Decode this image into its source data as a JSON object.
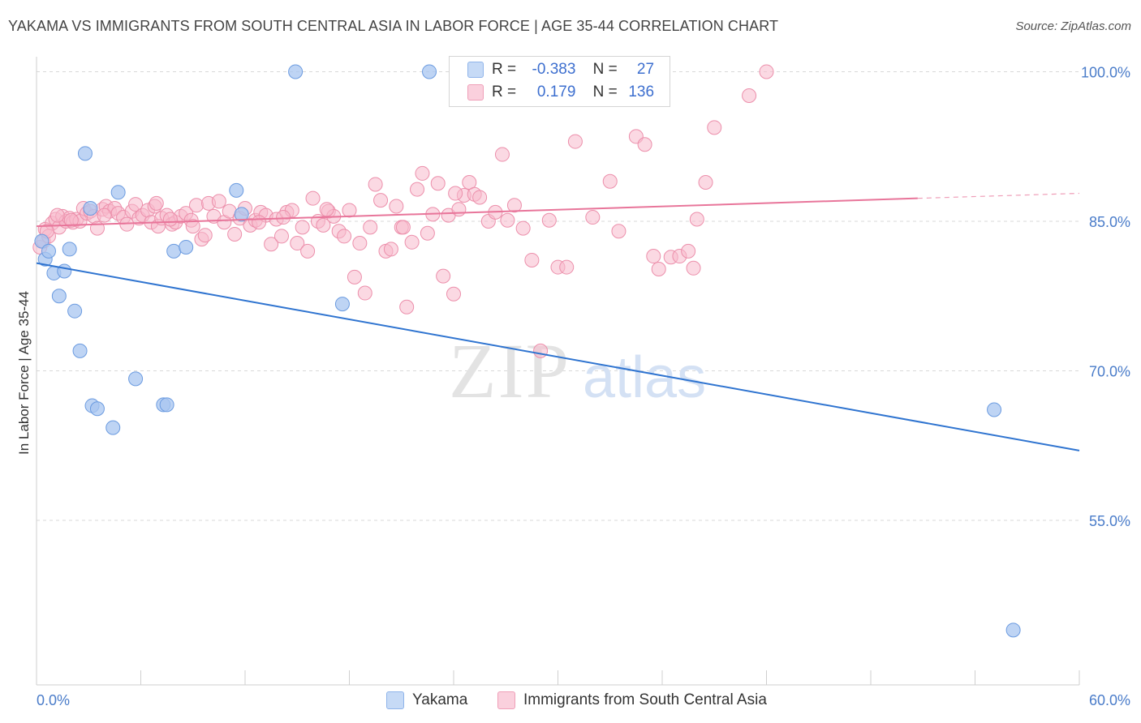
{
  "title": "YAKAMA VS IMMIGRANTS FROM SOUTH CENTRAL ASIA IN LABOR FORCE | AGE 35-44 CORRELATION CHART",
  "source": "Source: ZipAtlas.com",
  "watermark": {
    "zip": "ZIP",
    "atlas": "atlas"
  },
  "legend": {
    "series1": {
      "r_label": "R =",
      "r_value": "-0.383",
      "n_label": "N =",
      "n_value": "27",
      "color": "#a8c6f0"
    },
    "series2": {
      "r_label": "R =",
      "r_value": "0.179",
      "n_label": "N =",
      "n_value": "136",
      "color": "#f7b9cc"
    }
  },
  "bottom_legend": {
    "series1": "Yakama",
    "series2": "Immigrants from South Central Asia"
  },
  "chart_data": {
    "type": "scatter",
    "title": "YAKAMA VS IMMIGRANTS FROM SOUTH CENTRAL ASIA IN LABOR FORCE | AGE 35-44 CORRELATION CHART",
    "xlabel": "",
    "ylabel": "In Labor Force | Age 35-44",
    "xlim": [
      0,
      60
    ],
    "ylim": [
      38.5,
      101.5
    ],
    "x_tick_labels": [
      "0.0%",
      "60.0%"
    ],
    "y_ticks": [
      55,
      70,
      85,
      100
    ],
    "y_tick_labels": [
      "55.0%",
      "70.0%",
      "85.0%",
      "100.0%"
    ],
    "series": [
      {
        "name": "Yakama",
        "color": "#a8c6f0",
        "stroke": "#6b9be0",
        "trend": {
          "x0": 0,
          "y0": 80.8,
          "x1": 60,
          "y1": 62.0,
          "color": "#2f74d0"
        },
        "points": [
          [
            0.3,
            83.0
          ],
          [
            0.5,
            81.2
          ],
          [
            0.7,
            82.0
          ],
          [
            1.0,
            79.8
          ],
          [
            1.3,
            77.5
          ],
          [
            1.6,
            80.0
          ],
          [
            1.9,
            82.2
          ],
          [
            2.2,
            76.0
          ],
          [
            2.5,
            72.0
          ],
          [
            2.8,
            91.8
          ],
          [
            3.1,
            86.3
          ],
          [
            3.2,
            66.5
          ],
          [
            3.5,
            66.2
          ],
          [
            4.4,
            64.3
          ],
          [
            4.7,
            87.9
          ],
          [
            5.7,
            69.2
          ],
          [
            7.3,
            66.6
          ],
          [
            7.5,
            66.6
          ],
          [
            7.9,
            82.0
          ],
          [
            8.6,
            82.4
          ],
          [
            11.5,
            88.1
          ],
          [
            11.8,
            85.7
          ],
          [
            14.9,
            100.0
          ],
          [
            17.6,
            76.7
          ],
          [
            22.6,
            100.0
          ],
          [
            55.1,
            66.1
          ],
          [
            56.2,
            44.0
          ]
        ]
      },
      {
        "name": "Immigrants from South Central Asia",
        "color": "#f7b9cc",
        "stroke": "#ec8fab",
        "trend": {
          "x0": 0,
          "y0": 84.5,
          "x1": 50.7,
          "y1": 87.3,
          "dash_to_x": 60,
          "dash_to_y": 87.8,
          "color": "#e8759a"
        },
        "points": [
          [
            0.2,
            82.4
          ],
          [
            0.4,
            83.0
          ],
          [
            0.5,
            84.2
          ],
          [
            0.7,
            83.5
          ],
          [
            0.9,
            84.8
          ],
          [
            1.1,
            85.2
          ],
          [
            1.3,
            84.4
          ],
          [
            1.5,
            85.5
          ],
          [
            1.7,
            85.0
          ],
          [
            1.9,
            85.3
          ],
          [
            2.1,
            84.9
          ],
          [
            2.3,
            85.2
          ],
          [
            2.5,
            85.0
          ],
          [
            2.7,
            86.3
          ],
          [
            2.9,
            85.8
          ],
          [
            3.1,
            86.0
          ],
          [
            3.3,
            85.5
          ],
          [
            3.5,
            84.3
          ],
          [
            3.8,
            86.2
          ],
          [
            4.0,
            86.5
          ],
          [
            4.2,
            86.0
          ],
          [
            4.5,
            86.3
          ],
          [
            4.7,
            85.8
          ],
          [
            5.0,
            85.4
          ],
          [
            5.2,
            84.7
          ],
          [
            5.5,
            86.0
          ],
          [
            5.7,
            86.7
          ],
          [
            5.9,
            85.3
          ],
          [
            6.1,
            85.6
          ],
          [
            6.4,
            86.1
          ],
          [
            6.6,
            84.9
          ],
          [
            6.8,
            86.5
          ],
          [
            7.0,
            84.5
          ],
          [
            7.2,
            85.3
          ],
          [
            7.5,
            85.6
          ],
          [
            7.8,
            84.7
          ],
          [
            8.0,
            84.9
          ],
          [
            8.3,
            85.5
          ],
          [
            8.6,
            85.8
          ],
          [
            8.9,
            85.1
          ],
          [
            9.2,
            86.6
          ],
          [
            9.5,
            83.2
          ],
          [
            9.7,
            83.6
          ],
          [
            9.9,
            86.8
          ],
          [
            10.2,
            85.5
          ],
          [
            10.5,
            87.0
          ],
          [
            10.8,
            84.9
          ],
          [
            11.1,
            86.0
          ],
          [
            11.4,
            83.7
          ],
          [
            11.7,
            85.3
          ],
          [
            12.0,
            86.3
          ],
          [
            12.3,
            84.6
          ],
          [
            12.6,
            85.1
          ],
          [
            12.9,
            85.9
          ],
          [
            13.2,
            85.6
          ],
          [
            13.5,
            82.7
          ],
          [
            13.8,
            85.2
          ],
          [
            14.1,
            83.5
          ],
          [
            14.4,
            85.9
          ],
          [
            14.7,
            86.1
          ],
          [
            15.0,
            82.8
          ],
          [
            15.3,
            84.4
          ],
          [
            15.6,
            82.0
          ],
          [
            15.9,
            87.3
          ],
          [
            16.2,
            85.0
          ],
          [
            16.5,
            84.6
          ],
          [
            16.8,
            86.0
          ],
          [
            17.1,
            85.5
          ],
          [
            17.4,
            84.0
          ],
          [
            17.7,
            83.5
          ],
          [
            18.0,
            86.1
          ],
          [
            18.3,
            79.4
          ],
          [
            18.6,
            82.8
          ],
          [
            18.9,
            77.8
          ],
          [
            19.2,
            84.4
          ],
          [
            19.5,
            88.7
          ],
          [
            19.8,
            87.1
          ],
          [
            20.1,
            82.0
          ],
          [
            20.4,
            82.2
          ],
          [
            20.7,
            86.5
          ],
          [
            21.0,
            84.4
          ],
          [
            21.3,
            76.4
          ],
          [
            21.6,
            82.9
          ],
          [
            21.9,
            88.2
          ],
          [
            22.2,
            89.8
          ],
          [
            22.5,
            83.8
          ],
          [
            22.8,
            85.7
          ],
          [
            23.1,
            88.8
          ],
          [
            23.4,
            79.5
          ],
          [
            23.7,
            85.6
          ],
          [
            24.0,
            77.7
          ],
          [
            24.3,
            86.2
          ],
          [
            24.6,
            87.6
          ],
          [
            24.9,
            88.9
          ],
          [
            25.2,
            87.7
          ],
          [
            25.5,
            87.4
          ],
          [
            26.0,
            85.0
          ],
          [
            26.4,
            85.9
          ],
          [
            26.8,
            91.7
          ],
          [
            27.1,
            85.1
          ],
          [
            27.5,
            86.6
          ],
          [
            28.0,
            84.3
          ],
          [
            28.5,
            81.1
          ],
          [
            29.0,
            72.0
          ],
          [
            29.5,
            85.1
          ],
          [
            30.0,
            80.4
          ],
          [
            30.5,
            80.4
          ],
          [
            31.0,
            93.0
          ],
          [
            32.0,
            85.4
          ],
          [
            33.0,
            89.0
          ],
          [
            33.5,
            84.0
          ],
          [
            34.5,
            93.5
          ],
          [
            35.0,
            92.7
          ],
          [
            35.5,
            81.5
          ],
          [
            35.8,
            80.2
          ],
          [
            36.5,
            81.4
          ],
          [
            37.0,
            81.5
          ],
          [
            37.5,
            82.0
          ],
          [
            37.8,
            80.3
          ],
          [
            38.0,
            85.2
          ],
          [
            38.5,
            88.9
          ],
          [
            39.0,
            94.4
          ],
          [
            41.0,
            97.6
          ],
          [
            42.0,
            100.0
          ],
          [
            9.0,
            84.5
          ],
          [
            3.9,
            85.6
          ],
          [
            6.9,
            86.8
          ],
          [
            12.8,
            84.9
          ],
          [
            14.2,
            85.4
          ],
          [
            16.7,
            86.2
          ],
          [
            21.1,
            84.4
          ],
          [
            24.1,
            87.8
          ],
          [
            0.6,
            84.0
          ],
          [
            1.2,
            85.6
          ],
          [
            2.0,
            85.1
          ],
          [
            7.7,
            85.2
          ]
        ]
      }
    ]
  }
}
